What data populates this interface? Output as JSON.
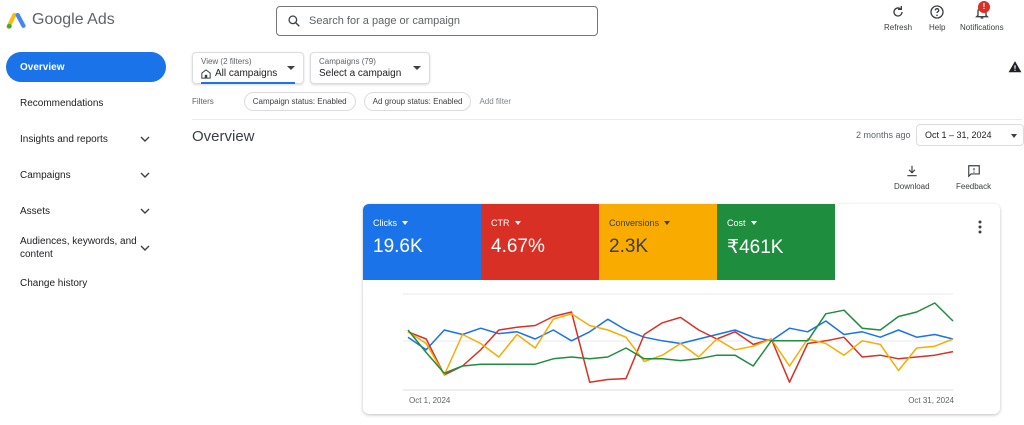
{
  "app": {
    "title": "Google Ads"
  },
  "search": {
    "placeholder": "Search for a page or campaign"
  },
  "toolbar": {
    "refresh_label": "Refresh",
    "help_label": "Help",
    "notifications_label": "Notifications",
    "notifications_badge": "!"
  },
  "sidebar": {
    "items": [
      {
        "label": "Overview",
        "active": true,
        "has_chevron": false
      },
      {
        "label": "Recommendations",
        "active": false,
        "has_chevron": false
      },
      {
        "label": "Insights and reports",
        "active": false,
        "has_chevron": true
      },
      {
        "label": "Campaigns",
        "active": false,
        "has_chevron": true
      },
      {
        "label": "Assets",
        "active": false,
        "has_chevron": true
      },
      {
        "label": "Audiences, keywords, and content",
        "active": false,
        "has_chevron": true
      },
      {
        "label": "Change history",
        "active": false,
        "has_chevron": false
      }
    ]
  },
  "view_dropdown": {
    "caption": "View (2 filters)",
    "value": "All campaigns"
  },
  "campaigns_dropdown": {
    "caption": "Campaigns (79)",
    "value": "Select a campaign"
  },
  "filters": {
    "label": "Filters",
    "chips": [
      "Campaign status: Enabled",
      "Ad group status: Enabled"
    ],
    "add_label": "Add filter"
  },
  "overview": {
    "title": "Overview",
    "date_relative": "2 months ago",
    "date_range": "Oct 1 – 31, 2024",
    "download_label": "Download",
    "feedback_label": "Feedback"
  },
  "metrics": [
    {
      "name": "Clicks",
      "value": "19.6K",
      "color": "#1a73e8"
    },
    {
      "name": "CTR",
      "value": "4.67%",
      "color": "#d93025"
    },
    {
      "name": "Conversions",
      "value": "2.3K",
      "color": "#f9ab00"
    },
    {
      "name": "Cost",
      "value": "₹461K",
      "color": "#1e8e3e"
    }
  ],
  "chart_data": {
    "type": "line",
    "x_start_label": "Oct 1, 2024",
    "x_end_label": "Oct 31, 2024",
    "y_axis": "unlabeled, normalized 0-100 per series",
    "series": [
      {
        "name": "Clicks",
        "color": "#1a73e8",
        "values": [
          52,
          38,
          60,
          55,
          62,
          56,
          58,
          50,
          60,
          48,
          58,
          72,
          60,
          52,
          48,
          45,
          50,
          55,
          60,
          52,
          48,
          62,
          58,
          70,
          55,
          58,
          52,
          60,
          52,
          55,
          50
        ]
      },
      {
        "name": "CTR",
        "color": "#d93025",
        "values": [
          58,
          50,
          10,
          20,
          38,
          60,
          63,
          65,
          75,
          80,
          2,
          5,
          6,
          55,
          68,
          74,
          60,
          50,
          58,
          44,
          50,
          2,
          45,
          48,
          52,
          30,
          32,
          28,
          30,
          32,
          36
        ]
      },
      {
        "name": "Conversions",
        "color": "#f9ab00",
        "values": [
          58,
          45,
          10,
          55,
          45,
          30,
          55,
          40,
          72,
          78,
          65,
          60,
          52,
          25,
          32,
          45,
          30,
          50,
          38,
          42,
          50,
          20,
          50,
          45,
          32,
          48,
          44,
          15,
          40,
          42,
          50
        ]
      },
      {
        "name": "Cost",
        "color": "#1e8e3e",
        "values": [
          60,
          35,
          12,
          20,
          22,
          22,
          22,
          22,
          28,
          30,
          28,
          30,
          40,
          28,
          28,
          26,
          28,
          32,
          32,
          20,
          48,
          48,
          48,
          78,
          82,
          62,
          60,
          75,
          80,
          90,
          70
        ]
      }
    ]
  }
}
